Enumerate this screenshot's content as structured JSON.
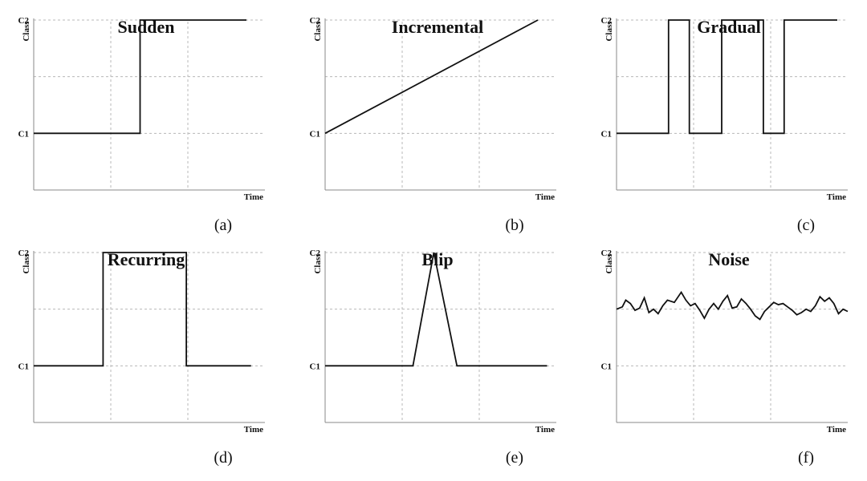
{
  "chart_data": [
    {
      "type": "line",
      "title": "Sudden",
      "caption": "(a)",
      "ylabel": "Class",
      "xlabel": "Time",
      "yticks": [
        "C1",
        "C2"
      ],
      "ylim": [
        0.5,
        2.0
      ],
      "xlim": [
        0,
        1
      ],
      "grid": true,
      "series": [
        {
          "x": [
            0,
            0.46,
            0.46,
            0.92
          ],
          "y": [
            1,
            1,
            2,
            2
          ]
        }
      ]
    },
    {
      "type": "line",
      "title": "Incremental",
      "caption": "(b)",
      "ylabel": "Class",
      "xlabel": "Time",
      "yticks": [
        "C1",
        "C2"
      ],
      "ylim": [
        0.5,
        2.0
      ],
      "xlim": [
        0,
        1
      ],
      "grid": true,
      "series": [
        {
          "x": [
            0,
            0.92
          ],
          "y": [
            1,
            2
          ]
        }
      ]
    },
    {
      "type": "line",
      "title": "Gradual",
      "caption": "(c)",
      "ylabel": "Class",
      "xlabel": "Time",
      "yticks": [
        "C1",
        "C2"
      ],
      "ylim": [
        0.5,
        2.0
      ],
      "xlim": [
        0,
        1
      ],
      "grid": true,
      "series": [
        {
          "x": [
            0,
            0.225,
            0.225,
            0.315,
            0.315,
            0.455,
            0.455,
            0.635,
            0.635,
            0.725,
            0.725,
            0.955
          ],
          "y": [
            1,
            1,
            2,
            2,
            1,
            1,
            2,
            2,
            1,
            1,
            2,
            2
          ]
        }
      ]
    },
    {
      "type": "line",
      "title": "Recurring",
      "caption": "(d)",
      "ylabel": "Class",
      "xlabel": "Time",
      "yticks": [
        "C1",
        "C2"
      ],
      "ylim": [
        0.5,
        2.0
      ],
      "xlim": [
        0,
        1
      ],
      "grid": true,
      "series": [
        {
          "x": [
            0,
            0.3,
            0.3,
            0.66,
            0.66,
            0.94
          ],
          "y": [
            1,
            1,
            2,
            2,
            1,
            1
          ]
        }
      ]
    },
    {
      "type": "line",
      "title": "Blip",
      "caption": "(e)",
      "ylabel": "Class",
      "xlabel": "Time",
      "yticks": [
        "C1",
        "C2"
      ],
      "ylim": [
        0.5,
        2.0
      ],
      "xlim": [
        0,
        1
      ],
      "grid": true,
      "series": [
        {
          "x": [
            0,
            0.38,
            0.47,
            0.57,
            0.96
          ],
          "y": [
            1,
            1,
            2,
            1,
            1
          ]
        }
      ]
    },
    {
      "type": "line",
      "title": "Noise",
      "caption": "(f)",
      "ylabel": "Class",
      "xlabel": "Time",
      "yticks": [
        "C1",
        "C2"
      ],
      "ylim": [
        0.5,
        2.0
      ],
      "xlim": [
        0,
        1
      ],
      "grid": true,
      "series": [
        {
          "x": [
            0,
            0.025,
            0.04,
            0.06,
            0.08,
            0.1,
            0.12,
            0.14,
            0.16,
            0.18,
            0.2,
            0.22,
            0.25,
            0.28,
            0.3,
            0.32,
            0.34,
            0.36,
            0.38,
            0.4,
            0.42,
            0.44,
            0.46,
            0.48,
            0.5,
            0.52,
            0.54,
            0.56,
            0.58,
            0.6,
            0.62,
            0.64,
            0.66,
            0.68,
            0.7,
            0.72,
            0.74,
            0.76,
            0.78,
            0.8,
            0.82,
            0.84,
            0.86,
            0.88,
            0.9,
            0.92,
            0.94,
            0.96,
            0.98,
            1.0
          ],
          "y": [
            1.5,
            1.52,
            1.58,
            1.55,
            1.49,
            1.51,
            1.6,
            1.47,
            1.5,
            1.46,
            1.53,
            1.58,
            1.56,
            1.65,
            1.58,
            1.53,
            1.55,
            1.49,
            1.42,
            1.5,
            1.55,
            1.5,
            1.57,
            1.62,
            1.51,
            1.52,
            1.59,
            1.55,
            1.5,
            1.44,
            1.41,
            1.48,
            1.52,
            1.56,
            1.54,
            1.55,
            1.52,
            1.49,
            1.45,
            1.47,
            1.5,
            1.48,
            1.53,
            1.61,
            1.57,
            1.6,
            1.55,
            1.46,
            1.5,
            1.48
          ]
        }
      ]
    }
  ]
}
